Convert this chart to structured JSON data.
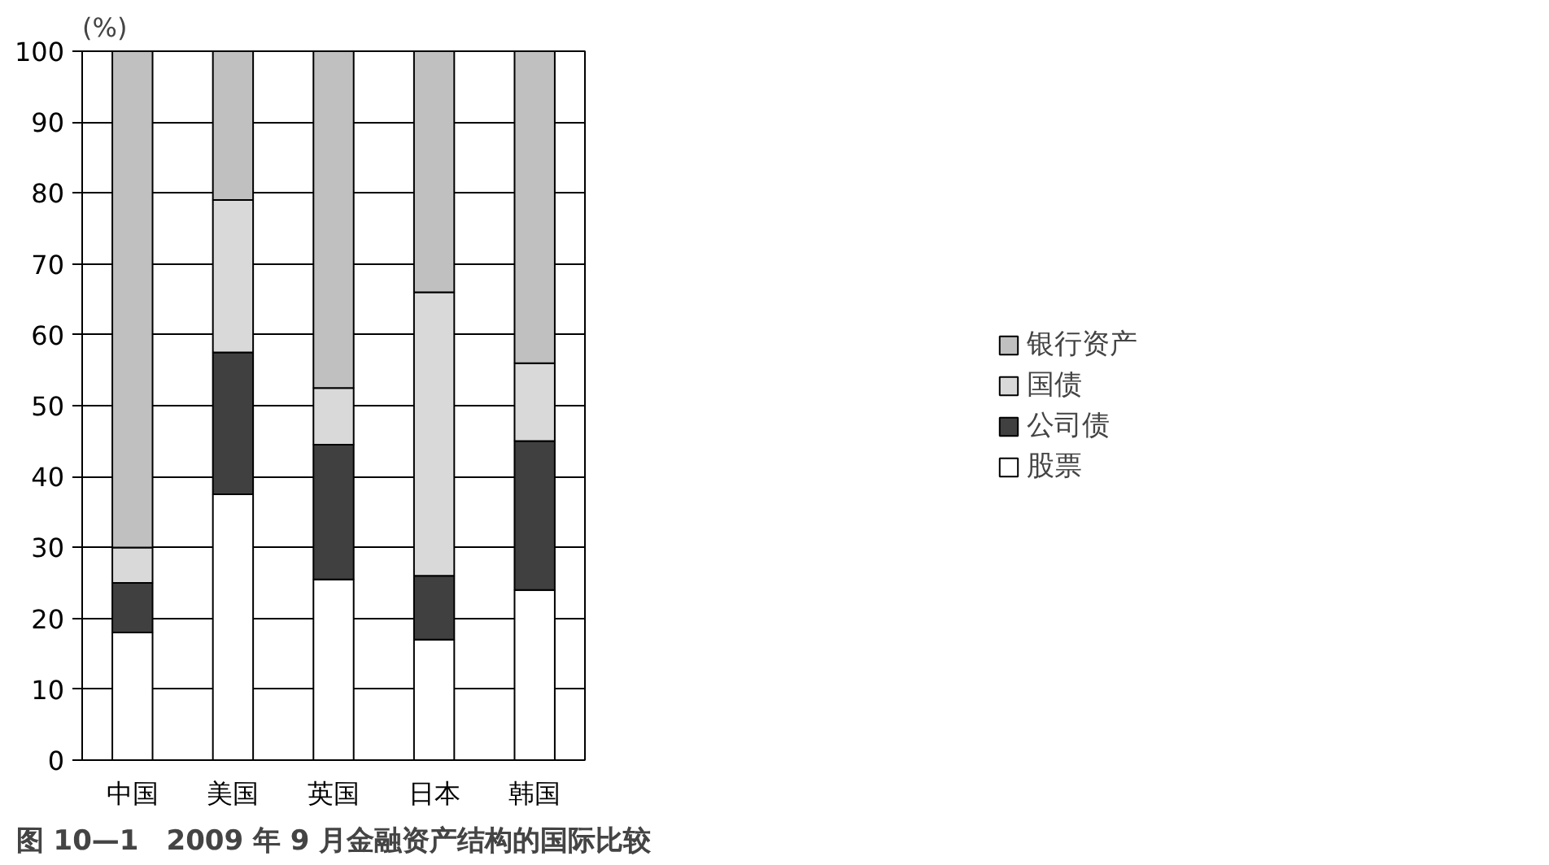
{
  "chart_data": {
    "type": "bar",
    "title": "图 10—1　2009 年 9 月金融资产结构的国际比较",
    "ylabel": "(%)",
    "categories": [
      "中国",
      "美国",
      "英国",
      "日本",
      "韩国"
    ],
    "stacked": true,
    "series": [
      {
        "name": "股票",
        "color": "#ffffff",
        "values": [
          18,
          37.5,
          25.5,
          17,
          24
        ]
      },
      {
        "name": "公司债",
        "color": "#404040",
        "values": [
          7,
          20,
          19,
          9,
          21
        ]
      },
      {
        "name": "国债",
        "color": "#d9d9d9",
        "values": [
          5,
          21.5,
          8,
          40,
          11
        ]
      },
      {
        "name": "银行资产",
        "color": "#c0c0c0",
        "values": [
          70,
          21,
          47.5,
          34,
          44
        ]
      }
    ],
    "ylim": [
      0,
      100
    ],
    "yticks": [
      0,
      10,
      20,
      30,
      40,
      50,
      60,
      70,
      80,
      90,
      100
    ],
    "grid": "y",
    "legend": "right"
  }
}
